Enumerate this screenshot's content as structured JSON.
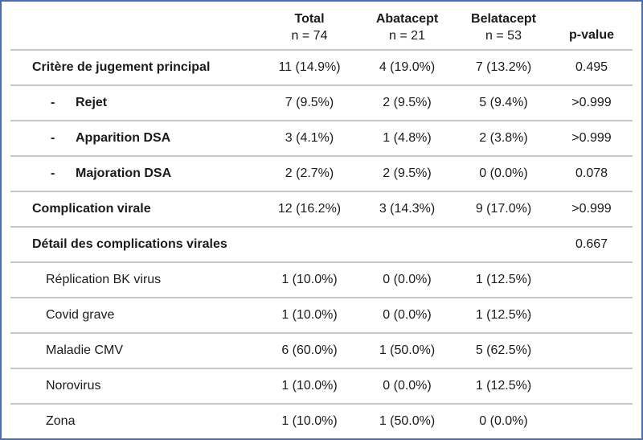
{
  "header": {
    "columns": [
      {
        "line1": "Total",
        "line2": "n = 74"
      },
      {
        "line1": "Abatacept",
        "line2": "n = 21"
      },
      {
        "line1": "Belatacept",
        "line2": "n = 53"
      }
    ],
    "pvalue_label": "p-value"
  },
  "rows": [
    {
      "bullet": "",
      "label": "Critère de jugement principal",
      "total": "11 (14.9%)",
      "abatacept": "4 (19.0%)",
      "belatacept": "7 (13.2%)",
      "pvalue": "0.495"
    },
    {
      "bullet": "-",
      "label": "Rejet",
      "total": "7 (9.5%)",
      "abatacept": "2 (9.5%)",
      "belatacept": "5 (9.4%)",
      "pvalue": ">0.999"
    },
    {
      "bullet": "-",
      "label": "Apparition DSA",
      "total": "3 (4.1%)",
      "abatacept": "1 (4.8%)",
      "belatacept": "2 (3.8%)",
      "pvalue": ">0.999"
    },
    {
      "bullet": "-",
      "label": "Majoration DSA",
      "total": "2 (2.7%)",
      "abatacept": "2 (9.5%)",
      "belatacept": "0 (0.0%)",
      "pvalue": "0.078"
    },
    {
      "bullet": "",
      "label": "Complication virale",
      "total": "12 (16.2%)",
      "abatacept": "3 (14.3%)",
      "belatacept": "9 (17.0%)",
      "pvalue": ">0.999"
    },
    {
      "bullet": "",
      "label": "Détail des complications virales",
      "total": "",
      "abatacept": "",
      "belatacept": "",
      "pvalue": "0.667"
    },
    {
      "bullet": "",
      "label": "Réplication BK virus",
      "total": "1 (10.0%)",
      "abatacept": "0 (0.0%)",
      "belatacept": "1 (12.5%)",
      "pvalue": ""
    },
    {
      "bullet": "",
      "label": "Covid grave",
      "total": "1 (10.0%)",
      "abatacept": "0 (0.0%)",
      "belatacept": "1 (12.5%)",
      "pvalue": ""
    },
    {
      "bullet": "",
      "label": "Maladie CMV",
      "total": "6 (60.0%)",
      "abatacept": "1 (50.0%)",
      "belatacept": "5 (62.5%)",
      "pvalue": ""
    },
    {
      "bullet": "",
      "label": "Norovirus",
      "total": "1 (10.0%)",
      "abatacept": "0 (0.0%)",
      "belatacept": "1 (12.5%)",
      "pvalue": ""
    },
    {
      "bullet": "",
      "label": "Zona",
      "total": "1 (10.0%)",
      "abatacept": "1 (50.0%)",
      "belatacept": "0 (0.0%)",
      "pvalue": ""
    }
  ],
  "colors": {
    "border_blue": "#4a6cb2",
    "separator_gray": "#c6c6c6",
    "text": "#1b1b1b"
  }
}
